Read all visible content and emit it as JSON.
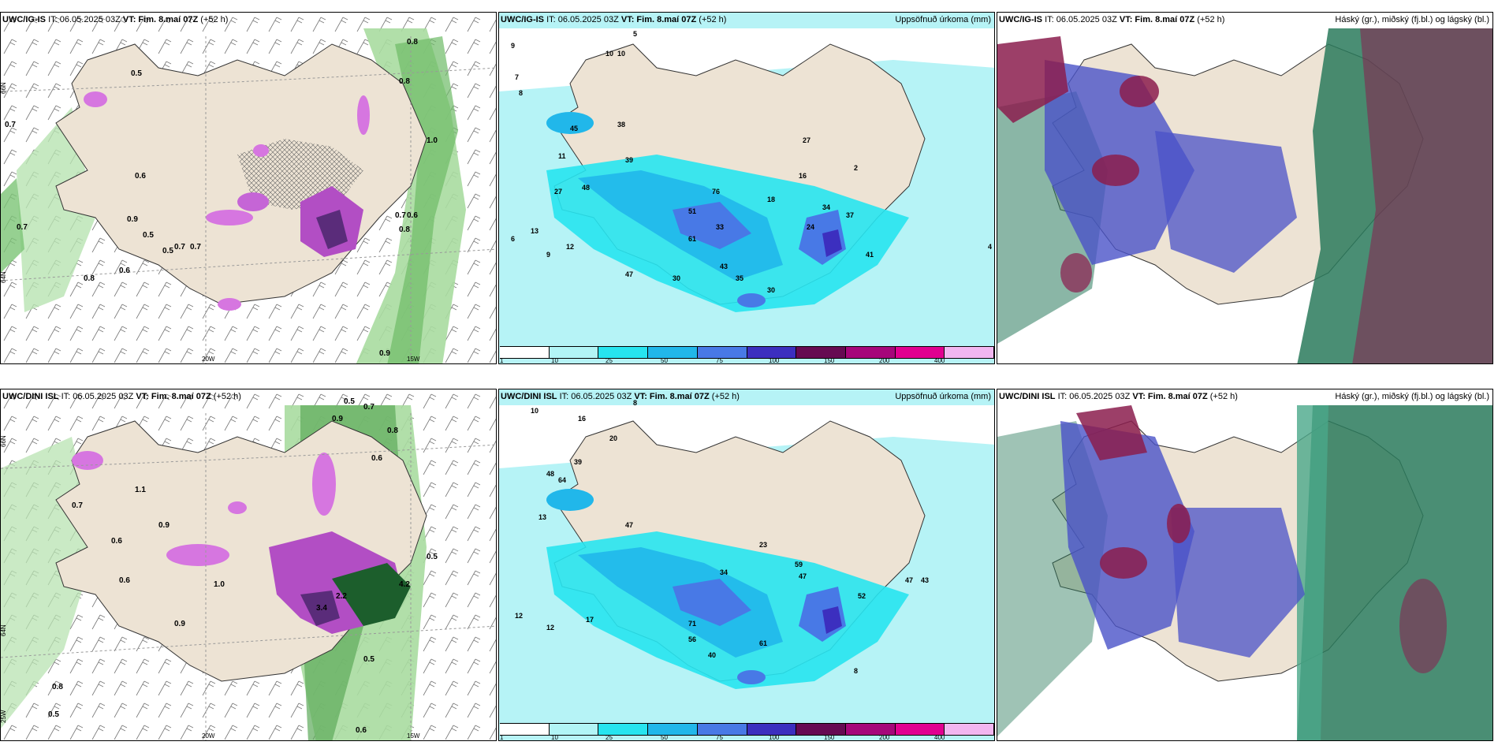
{
  "panels": [
    {
      "model": "UWC/IG-IS",
      "it": "IT: 06.05.2025 03Z",
      "vt": "VT: Fim. 8.maí 07Z",
      "lead": "(+52 h)",
      "right_title": ""
    },
    {
      "model": "UWC/IG-IS",
      "it": "IT: 06.05.2025 03Z",
      "vt": "VT: Fim. 8.maí 07Z",
      "lead": "(+52 h)",
      "right_title": "Uppsöfnuð úrkoma (mm)"
    },
    {
      "model": "UWC/IG-IS",
      "it": "IT: 06.05.2025 03Z",
      "vt": "VT: Fim. 8.maí 07Z",
      "lead": "(+52 h)",
      "right_title": "Háský (gr.), miðský (fj.bl.) og lágský (bl.)"
    },
    {
      "model": "UWC/DINI ISL",
      "it": "IT: 06.05.2025 03Z",
      "vt": "VT: Fim. 8.maí 07Z",
      "lead": "(+52 h)",
      "right_title": ""
    },
    {
      "model": "UWC/DINI ISL",
      "it": "IT: 06.05.2025 03Z",
      "vt": "VT: Fim. 8.maí 07Z",
      "lead": "(+52 h)",
      "right_title": "Uppsöfnuð úrkoma (mm)"
    },
    {
      "model": "UWC/DINI ISL",
      "it": "IT: 06.05.2025 03Z",
      "vt": "VT: Fim. 8.maí 07Z",
      "lead": "(+52 h)",
      "right_title": "Háský (gr.), miðský (fj.bl.) og lágský (bl.)"
    }
  ],
  "legend": {
    "labels": [
      "1",
      "10",
      "25",
      "50",
      "75",
      "100",
      "150",
      "200",
      "400"
    ],
    "colors": [
      "#ffffff",
      "#b2f5f6",
      "#27e4ef",
      "#21b7ea",
      "#4879e6",
      "#3c2fbf",
      "#660a52",
      "#a6067a",
      "#e10090",
      "#f2b6f0"
    ]
  },
  "axis_labels": {
    "lat_n": "66N",
    "lat_s": "64N",
    "lat_bottom": "25W",
    "lon_w": "20W",
    "lon_e": "15W"
  },
  "colors": {
    "land": "#ede3d4",
    "sea_precip": "#b6f3f6",
    "snow": "#d676e0",
    "green_precip": "#73c66e",
    "cloud_high": "#2a7a5c",
    "cloud_mid": "#4a52c8",
    "cloud_low": "#8b1d4e"
  },
  "values": {
    "p1_labels": [
      "0.8",
      "0.7",
      "0.5",
      "0.6",
      "0.5",
      "0.7",
      "0.9",
      "0.5",
      "0.7",
      "0.8",
      "0.7",
      "0.6",
      "0.8",
      "1.0",
      "0.8",
      "0.7",
      "0.6",
      "0.9"
    ],
    "p2_labels": [
      "9",
      "7",
      "8",
      "6",
      "13",
      "9",
      "5",
      "10",
      "45",
      "39",
      "27",
      "48",
      "38",
      "12",
      "33",
      "51",
      "61",
      "76",
      "43",
      "18",
      "47",
      "30",
      "16",
      "2",
      "4",
      "30",
      "35",
      "10",
      "11",
      "27",
      "24",
      "34",
      "37",
      "41"
    ],
    "p4_labels": [
      "0.5",
      "0.9",
      "0.7",
      "0.8",
      "0.6",
      "1.1",
      "0.7",
      "0.6",
      "0.9",
      "0.5",
      "1.0",
      "0.6",
      "4.2",
      "2.2",
      "3.4",
      "0.9",
      "0.5",
      "0.8",
      "0.5",
      "0.6"
    ],
    "p5_labels": [
      "10",
      "8",
      "12",
      "16",
      "20",
      "39",
      "47",
      "71",
      "56",
      "48",
      "61",
      "23",
      "47",
      "34",
      "52",
      "40",
      "47",
      "43",
      "8",
      "12",
      "17",
      "13",
      "59",
      "64"
    ]
  }
}
